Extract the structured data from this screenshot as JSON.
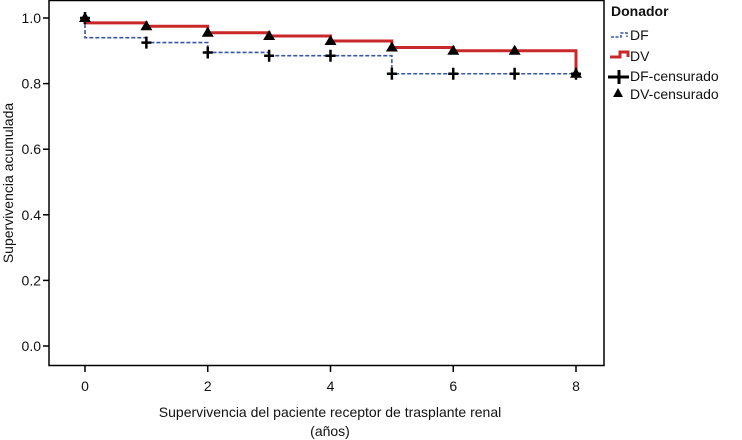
{
  "chart_data": {
    "type": "line",
    "subtype": "kaplan-meier-step",
    "xlabel_line1": "Supervivencia del paciente receptor de trasplante renal",
    "xlabel_line2": "(años)",
    "ylabel": "Supervivencia acumulada",
    "xlim": [
      0,
      8
    ],
    "ylim": [
      0,
      1.0
    ],
    "xticks": [
      "0",
      "2",
      "4",
      "6",
      "8"
    ],
    "yticks": [
      "0.0",
      "0.2",
      "0.4",
      "0.6",
      "0.8",
      "1.0"
    ],
    "grid": false,
    "legend_title": "Donador",
    "legend_position": "right",
    "series": [
      {
        "name": "DF",
        "color": "#3a55a8",
        "style": "dashed",
        "steps": [
          [
            0,
            1.0
          ],
          [
            0,
            0.94
          ],
          [
            1,
            0.925
          ],
          [
            2,
            0.895
          ],
          [
            3,
            0.885
          ],
          [
            5,
            0.83
          ],
          [
            8,
            0.83
          ]
        ],
        "censored_name": "DF-censurado",
        "censor_marker": "cross",
        "censored": [
          [
            0,
            1.0
          ],
          [
            1,
            0.925
          ],
          [
            2,
            0.895
          ],
          [
            3,
            0.885
          ],
          [
            4,
            0.885
          ],
          [
            5,
            0.83
          ],
          [
            6,
            0.83
          ],
          [
            7,
            0.83
          ],
          [
            8,
            0.83
          ]
        ]
      },
      {
        "name": "DV",
        "color": "#c8282a",
        "style": "solid",
        "steps": [
          [
            0,
            1.0
          ],
          [
            0,
            0.985
          ],
          [
            1,
            0.975
          ],
          [
            2,
            0.955
          ],
          [
            3,
            0.945
          ],
          [
            4,
            0.93
          ],
          [
            5,
            0.91
          ],
          [
            6,
            0.9
          ],
          [
            8,
            0.83
          ]
        ],
        "censored_name": "DV-censurado",
        "censor_marker": "triangle",
        "censored": [
          [
            0,
            1.0
          ],
          [
            1,
            0.975
          ],
          [
            2,
            0.955
          ],
          [
            3,
            0.945
          ],
          [
            4,
            0.93
          ],
          [
            5,
            0.91
          ],
          [
            6,
            0.9
          ],
          [
            7,
            0.9
          ],
          [
            8,
            0.83
          ]
        ]
      }
    ]
  }
}
